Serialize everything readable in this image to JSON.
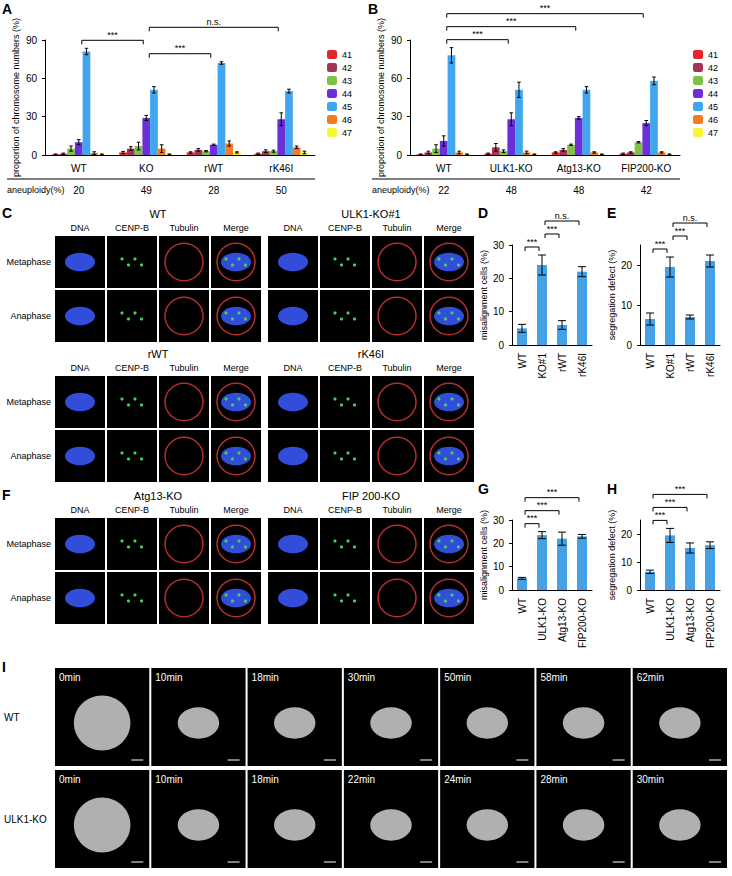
{
  "chart_data": [
    {
      "panel": "A",
      "type": "bar",
      "y_label": "proportion of chromosome numbers (%)",
      "categories": [
        "WT",
        "KO",
        "rWT",
        "rK46I"
      ],
      "ylim": [
        0,
        90
      ],
      "yticks": [
        0,
        30,
        60,
        90
      ],
      "grid": false,
      "legend": "right",
      "series": [
        {
          "name": "41",
          "color": "#e8242a",
          "values": [
            0.5,
            2,
            2,
            1
          ],
          "errors": [
            0.3,
            0.8,
            0.5,
            0.5
          ]
        },
        {
          "name": "42",
          "color": "#a33456",
          "values": [
            1,
            5,
            4,
            3
          ],
          "errors": [
            0.5,
            1.5,
            1,
            1
          ]
        },
        {
          "name": "43",
          "color": "#7dc242",
          "values": [
            5,
            7,
            3,
            3
          ],
          "errors": [
            2,
            3,
            0.5,
            0.8
          ]
        },
        {
          "name": "44",
          "color": "#6a2fd6",
          "values": [
            10,
            29,
            8,
            28
          ],
          "errors": [
            2,
            2,
            0.5,
            5
          ]
        },
        {
          "name": "45",
          "color": "#40a6f0",
          "values": [
            81,
            51,
            72,
            50
          ],
          "errors": [
            2.5,
            2.5,
            1,
            1.5
          ]
        },
        {
          "name": "46",
          "color": "#f47b20",
          "values": [
            1.5,
            5,
            9,
            6
          ],
          "errors": [
            1,
            3,
            2,
            1
          ]
        },
        {
          "name": "47",
          "color": "#f5f53a",
          "values": [
            0.5,
            0.5,
            2,
            2
          ],
          "errors": [
            0.3,
            0.3,
            0.5,
            1
          ]
        }
      ],
      "table": {
        "label": "aneuploidy(%)",
        "values": [
          20,
          49,
          28,
          50
        ]
      },
      "significance": [
        {
          "from": "KO",
          "to": "rWT",
          "label": "***"
        },
        {
          "from": "WT",
          "to": "KO",
          "label": "***"
        },
        {
          "from": "KO",
          "to": "rK46I",
          "label": "n.s."
        }
      ]
    },
    {
      "panel": "B",
      "type": "bar",
      "y_label": "proportion of chromosome numbers (%)",
      "categories": [
        "WT",
        "ULK1-KO",
        "Atg13-KO",
        "FIP200-KO"
      ],
      "ylim": [
        0,
        90
      ],
      "yticks": [
        0,
        30,
        60,
        90
      ],
      "grid": false,
      "legend": "right",
      "series": [
        {
          "name": "41",
          "color": "#e8242a",
          "values": [
            0.5,
            1,
            2,
            1
          ],
          "errors": [
            0.3,
            0.5,
            0.5,
            0.5
          ]
        },
        {
          "name": "42",
          "color": "#a33456",
          "values": [
            2,
            6,
            4,
            2
          ],
          "errors": [
            1,
            3,
            1,
            0.5
          ]
        },
        {
          "name": "43",
          "color": "#7dc242",
          "values": [
            5,
            3,
            8,
            10
          ],
          "errors": [
            3,
            1,
            0.5,
            0.5
          ]
        },
        {
          "name": "44",
          "color": "#6a2fd6",
          "values": [
            11,
            28,
            29,
            25
          ],
          "errors": [
            4,
            5,
            1,
            2
          ]
        },
        {
          "name": "45",
          "color": "#40a6f0",
          "values": [
            78,
            51,
            51,
            58
          ],
          "errors": [
            6,
            6,
            2.5,
            3
          ]
        },
        {
          "name": "46",
          "color": "#f47b20",
          "values": [
            2,
            2,
            2,
            2
          ],
          "errors": [
            1,
            1,
            0.5,
            0.5
          ]
        },
        {
          "name": "47",
          "color": "#f5f53a",
          "values": [
            0.5,
            0.5,
            0.5,
            0.5
          ],
          "errors": [
            0.3,
            0.3,
            0.3,
            0.3
          ]
        }
      ],
      "table": {
        "label": "aneuploidy(%)",
        "values": [
          22,
          48,
          48,
          42
        ]
      },
      "significance": [
        {
          "from": "WT",
          "to": "ULK1-KO",
          "label": "***"
        },
        {
          "from": "WT",
          "to": "Atg13-KO",
          "label": "***"
        },
        {
          "from": "WT",
          "to": "FIP200-KO",
          "label": "***"
        }
      ]
    },
    {
      "panel": "D",
      "type": "bar",
      "y_label": "misalignment cells (%)",
      "categories": [
        "WT",
        "KO#1",
        "rWT",
        "rK46I"
      ],
      "ylim": [
        0,
        30
      ],
      "yticks": [
        0,
        10,
        20,
        30
      ],
      "grid": false,
      "color": "#45a1e6",
      "values": [
        5,
        24,
        6,
        22
      ],
      "errors": [
        1.2,
        3,
        1.3,
        1.5
      ],
      "significance": [
        {
          "from": "WT",
          "to": "KO#1",
          "label": "***"
        },
        {
          "from": "KO#1",
          "to": "rWT",
          "label": "***"
        },
        {
          "from": "KO#1",
          "to": "rK46I",
          "label": "n.s."
        }
      ]
    },
    {
      "panel": "E",
      "type": "bar",
      "y_label": "segregation defect (%)",
      "categories": [
        "WT",
        "KO#1",
        "rWT",
        "rK46I"
      ],
      "ylim": [
        0,
        25
      ],
      "yticks": [
        0,
        10,
        20
      ],
      "grid": false,
      "color": "#45a1e6",
      "values": [
        6.5,
        19.5,
        7,
        21
      ],
      "errors": [
        1.5,
        2.5,
        0.5,
        1.5
      ],
      "significance": [
        {
          "from": "WT",
          "to": "KO#1",
          "label": "***"
        },
        {
          "from": "KO#1",
          "to": "rWT",
          "label": "***"
        },
        {
          "from": "KO#1",
          "to": "rK46I",
          "label": "n.s."
        }
      ]
    },
    {
      "panel": "G",
      "type": "bar",
      "y_label": "misalignment cells (%)",
      "categories": [
        "WT",
        "ULK1-KO",
        "Atg13-KO",
        "FIP200-KO"
      ],
      "ylim": [
        0,
        30
      ],
      "yticks": [
        0,
        10,
        20,
        30
      ],
      "grid": false,
      "color": "#45a1e6",
      "values": [
        5,
        23.5,
        22,
        23
      ],
      "errors": [
        0.4,
        1.5,
        2.8,
        0.8
      ],
      "significance": [
        {
          "from": "WT",
          "to": "ULK1-KO",
          "label": "***"
        },
        {
          "from": "WT",
          "to": "Atg13-KO",
          "label": "***"
        },
        {
          "from": "WT",
          "to": "FIP200-KO",
          "label": "***"
        }
      ]
    },
    {
      "panel": "H",
      "type": "bar",
      "y_label": "segregation defect (%)",
      "categories": [
        "WT",
        "ULK1-KO",
        "Atg13-KO",
        "FIP200-KO"
      ],
      "ylim": [
        0,
        25
      ],
      "yticks": [
        0,
        10,
        20
      ],
      "grid": false,
      "color": "#45a1e6",
      "values": [
        6.5,
        19.5,
        15,
        16
      ],
      "errors": [
        0.6,
        2.5,
        1.8,
        1.2
      ],
      "significance": [
        {
          "from": "WT",
          "to": "ULK1-KO",
          "label": "***"
        },
        {
          "from": "WT",
          "to": "Atg13-KO",
          "label": "***"
        },
        {
          "from": "WT",
          "to": "FIP200-KO",
          "label": "***"
        }
      ]
    }
  ],
  "image_panels": [
    {
      "panel": "C",
      "groups": [
        {
          "title": "WT",
          "columns": [
            "DNA",
            "CENP-B",
            "Tubulin",
            "Merge"
          ],
          "rows": [
            "Metaphase",
            "Anaphase"
          ]
        },
        {
          "title": "ULK1-KO#1",
          "columns": [
            "DNA",
            "CENP-B",
            "Tubulin",
            "Merge"
          ]
        },
        {
          "title": "rWT",
          "columns": [
            "DNA",
            "CENP-B",
            "Tubulin",
            "Merge"
          ],
          "rows": [
            "Metaphase",
            "Anaphase"
          ]
        },
        {
          "title": "rK46I",
          "columns": [
            "DNA",
            "CENP-B",
            "Tubulin",
            "Merge"
          ]
        }
      ]
    },
    {
      "panel": "F",
      "groups": [
        {
          "title": "Atg13-KO",
          "columns": [
            "DNA",
            "CENP-B",
            "Tubulin",
            "Merge"
          ],
          "rows": [
            "Metaphase",
            "Anaphase"
          ]
        },
        {
          "title": "FIP 200-KO",
          "columns": [
            "DNA",
            "CENP-B",
            "Tubulin",
            "Merge"
          ]
        }
      ]
    },
    {
      "panel": "I",
      "rows": [
        {
          "label": "WT",
          "times": [
            "0min",
            "10min",
            "18min",
            "30min",
            "50min",
            "58min",
            "62min"
          ]
        },
        {
          "label": "ULK1-KO",
          "times": [
            "0min",
            "10min",
            "18min",
            "22min",
            "24min",
            "28min",
            "30min"
          ]
        }
      ]
    }
  ]
}
